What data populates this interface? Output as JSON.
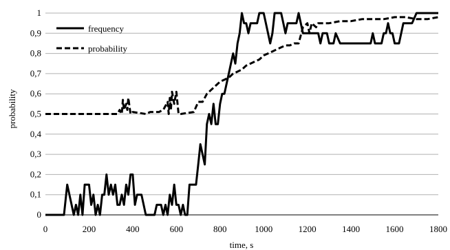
{
  "chart_data": {
    "type": "line",
    "title": "",
    "xlabel": "time, s",
    "ylabel": "probability",
    "xlim": [
      0,
      1800
    ],
    "ylim": [
      0,
      1
    ],
    "x_ticks": [
      "0",
      "200",
      "400",
      "600",
      "800",
      "1000",
      "1200",
      "1400",
      "1600",
      "1800"
    ],
    "y_ticks": [
      "0",
      "0,1",
      "0,2",
      "0,3",
      "0,4",
      "0,5",
      "0,6",
      "0,7",
      "0,8",
      "0,9",
      "1"
    ],
    "grid": "horizontal",
    "legend_position": "top-left",
    "colors": {
      "line": "#000000",
      "grid": "#b0b0b0"
    },
    "series": [
      {
        "name": "frequency",
        "style": "solid",
        "points": [
          [
            0,
            0
          ],
          [
            85,
            0
          ],
          [
            100,
            0.15
          ],
          [
            110,
            0.1
          ],
          [
            120,
            0.05
          ],
          [
            130,
            0
          ],
          [
            140,
            0.05
          ],
          [
            150,
            0
          ],
          [
            160,
            0.1
          ],
          [
            170,
            0
          ],
          [
            180,
            0.15
          ],
          [
            200,
            0.15
          ],
          [
            210,
            0.05
          ],
          [
            220,
            0.1
          ],
          [
            230,
            0
          ],
          [
            240,
            0.05
          ],
          [
            250,
            0
          ],
          [
            260,
            0.1
          ],
          [
            270,
            0.1
          ],
          [
            280,
            0.2
          ],
          [
            290,
            0.1
          ],
          [
            300,
            0.15
          ],
          [
            310,
            0.1
          ],
          [
            320,
            0.15
          ],
          [
            330,
            0.05
          ],
          [
            340,
            0.05
          ],
          [
            350,
            0.1
          ],
          [
            360,
            0.05
          ],
          [
            370,
            0.15
          ],
          [
            380,
            0.1
          ],
          [
            390,
            0.2
          ],
          [
            400,
            0.2
          ],
          [
            410,
            0.05
          ],
          [
            420,
            0.1
          ],
          [
            440,
            0.1
          ],
          [
            450,
            0.05
          ],
          [
            460,
            0
          ],
          [
            500,
            0
          ],
          [
            510,
            0.05
          ],
          [
            530,
            0.05
          ],
          [
            540,
            0
          ],
          [
            550,
            0.05
          ],
          [
            560,
            0
          ],
          [
            570,
            0.1
          ],
          [
            580,
            0.05
          ],
          [
            590,
            0.15
          ],
          [
            600,
            0.05
          ],
          [
            610,
            0.05
          ],
          [
            620,
            0
          ],
          [
            630,
            0.05
          ],
          [
            640,
            0
          ],
          [
            650,
            0
          ],
          [
            660,
            0.15
          ],
          [
            690,
            0.15
          ],
          [
            700,
            0.25
          ],
          [
            710,
            0.35
          ],
          [
            720,
            0.3
          ],
          [
            730,
            0.25
          ],
          [
            740,
            0.45
          ],
          [
            750,
            0.5
          ],
          [
            760,
            0.45
          ],
          [
            770,
            0.55
          ],
          [
            780,
            0.45
          ],
          [
            790,
            0.45
          ],
          [
            800,
            0.55
          ],
          [
            810,
            0.6
          ],
          [
            820,
            0.6
          ],
          [
            830,
            0.65
          ],
          [
            840,
            0.7
          ],
          [
            850,
            0.75
          ],
          [
            860,
            0.8
          ],
          [
            870,
            0.75
          ],
          [
            880,
            0.85
          ],
          [
            890,
            0.9
          ],
          [
            900,
            1
          ],
          [
            910,
            0.95
          ],
          [
            920,
            0.95
          ],
          [
            930,
            0.9
          ],
          [
            940,
            0.95
          ],
          [
            970,
            0.95
          ],
          [
            980,
            1
          ],
          [
            1000,
            1
          ],
          [
            1010,
            0.95
          ],
          [
            1030,
            0.85
          ],
          [
            1040,
            0.9
          ],
          [
            1050,
            1
          ],
          [
            1080,
            1
          ],
          [
            1090,
            0.95
          ],
          [
            1100,
            0.9
          ],
          [
            1110,
            0.95
          ],
          [
            1150,
            0.95
          ],
          [
            1160,
            1
          ],
          [
            1180,
            0.9
          ],
          [
            1250,
            0.9
          ],
          [
            1260,
            0.85
          ],
          [
            1270,
            0.9
          ],
          [
            1290,
            0.9
          ],
          [
            1300,
            0.85
          ],
          [
            1320,
            0.85
          ],
          [
            1330,
            0.9
          ],
          [
            1350,
            0.85
          ],
          [
            1490,
            0.85
          ],
          [
            1500,
            0.9
          ],
          [
            1510,
            0.85
          ],
          [
            1540,
            0.85
          ],
          [
            1550,
            0.9
          ],
          [
            1560,
            0.9
          ],
          [
            1570,
            0.95
          ],
          [
            1580,
            0.9
          ],
          [
            1590,
            0.9
          ],
          [
            1600,
            0.85
          ],
          [
            1620,
            0.85
          ],
          [
            1640,
            0.95
          ],
          [
            1660,
            0.95
          ],
          [
            1680,
            0.95
          ],
          [
            1700,
            1
          ],
          [
            1800,
            1
          ]
        ]
      },
      {
        "name": "probability",
        "style": "dashed",
        "points": [
          [
            0,
            0.5
          ],
          [
            330,
            0.5
          ],
          [
            340,
            0.52
          ],
          [
            350,
            0.5
          ],
          [
            355,
            0.57
          ],
          [
            360,
            0.52
          ],
          [
            370,
            0.55
          ],
          [
            375,
            0.52
          ],
          [
            380,
            0.58
          ],
          [
            390,
            0.5
          ],
          [
            400,
            0.51
          ],
          [
            460,
            0.5
          ],
          [
            480,
            0.51
          ],
          [
            520,
            0.51
          ],
          [
            540,
            0.52
          ],
          [
            560,
            0.56
          ],
          [
            565,
            0.5
          ],
          [
            570,
            0.58
          ],
          [
            575,
            0.52
          ],
          [
            580,
            0.61
          ],
          [
            590,
            0.55
          ],
          [
            600,
            0.61
          ],
          [
            610,
            0.5
          ],
          [
            620,
            0.5
          ],
          [
            680,
            0.51
          ],
          [
            700,
            0.56
          ],
          [
            720,
            0.56
          ],
          [
            740,
            0.6
          ],
          [
            760,
            0.62
          ],
          [
            780,
            0.64
          ],
          [
            800,
            0.66
          ],
          [
            820,
            0.67
          ],
          [
            840,
            0.68
          ],
          [
            860,
            0.7
          ],
          [
            880,
            0.71
          ],
          [
            900,
            0.72
          ],
          [
            920,
            0.74
          ],
          [
            940,
            0.75
          ],
          [
            960,
            0.76
          ],
          [
            980,
            0.77
          ],
          [
            1000,
            0.79
          ],
          [
            1020,
            0.8
          ],
          [
            1040,
            0.81
          ],
          [
            1060,
            0.82
          ],
          [
            1080,
            0.83
          ],
          [
            1100,
            0.84
          ],
          [
            1120,
            0.84
          ],
          [
            1140,
            0.85
          ],
          [
            1160,
            0.85
          ],
          [
            1180,
            0.93
          ],
          [
            1200,
            0.95
          ],
          [
            1210,
            0.9
          ],
          [
            1220,
            0.95
          ],
          [
            1240,
            0.93
          ],
          [
            1250,
            0.95
          ],
          [
            1300,
            0.95
          ],
          [
            1350,
            0.96
          ],
          [
            1400,
            0.96
          ],
          [
            1450,
            0.97
          ],
          [
            1500,
            0.97
          ],
          [
            1550,
            0.97
          ],
          [
            1600,
            0.98
          ],
          [
            1650,
            0.98
          ],
          [
            1700,
            0.97
          ],
          [
            1750,
            0.97
          ],
          [
            1800,
            0.98
          ]
        ]
      }
    ]
  }
}
